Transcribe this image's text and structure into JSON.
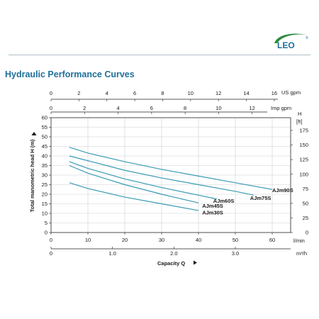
{
  "brand": {
    "name": "LEO",
    "registered": "®",
    "color": "#2e8b3d"
  },
  "header": {
    "title": "Hydraulic Performance Curves"
  },
  "chart_data": {
    "type": "line",
    "title": "Hydraulic Performance Curves",
    "xlabel": "Capacity Q",
    "ylabel": "Total manometric head H (m)",
    "grid": true,
    "line_color": "#3a9bb5",
    "grid_color": "#cfcfcf",
    "xlim": [
      0,
      65
    ],
    "ylim": [
      0,
      60
    ],
    "x_unit": "l/min",
    "x_ticks": [
      "0",
      "10",
      "20",
      "30",
      "40",
      "50",
      "60"
    ],
    "y_ticks": [
      "0",
      "5",
      "10",
      "15",
      "20",
      "25",
      "30",
      "35",
      "40",
      "45",
      "50",
      "55",
      "60"
    ],
    "y_unit": "m",
    "right_axis": {
      "unit": "H",
      "unit2": "[ft]",
      "ticks": [
        {
          "label": "0",
          "value": 0
        },
        {
          "label": "25",
          "value": 7.62
        },
        {
          "label": "50",
          "value": 15.24
        },
        {
          "label": "75",
          "value": 22.86
        },
        {
          "label": "100",
          "value": 30.48
        },
        {
          "label": "125",
          "value": 38.1
        },
        {
          "label": "150",
          "value": 45.72
        },
        {
          "label": "175",
          "value": 53.34
        }
      ]
    },
    "top_axis_us": {
      "unit": "US gpm",
      "ticks": [
        {
          "label": "0",
          "value": 0
        },
        {
          "label": "2",
          "value": 7.57
        },
        {
          "label": "4",
          "value": 15.14
        },
        {
          "label": "6",
          "value": 22.71
        },
        {
          "label": "8",
          "value": 30.28
        },
        {
          "label": "10",
          "value": 37.85
        },
        {
          "label": "12",
          "value": 45.42
        },
        {
          "label": "14",
          "value": 52.99
        },
        {
          "label": "16",
          "value": 60.56
        }
      ]
    },
    "top_axis_imp": {
      "unit": "Imp gpm",
      "ticks": [
        {
          "label": "0",
          "value": 0
        },
        {
          "label": "2",
          "value": 9.09
        },
        {
          "label": "4",
          "value": 18.18
        },
        {
          "label": "6",
          "value": 27.28
        },
        {
          "label": "8",
          "value": 36.37
        },
        {
          "label": "10",
          "value": 45.46
        },
        {
          "label": "12",
          "value": 54.55
        }
      ]
    },
    "bottom_axis_m3h": {
      "unit": "m³/h",
      "ticks": [
        {
          "label": "0",
          "value": 0
        },
        {
          "label": "1.0",
          "value": 16.67
        },
        {
          "label": "2.0",
          "value": 33.33
        },
        {
          "label": "3.0",
          "value": 50
        }
      ]
    },
    "series": [
      {
        "name": "AJm90S",
        "x": [
          5,
          10,
          20,
          30,
          40,
          50,
          60
        ],
        "y": [
          44.5,
          41.5,
          37,
          33,
          29.5,
          26,
          22.5
        ],
        "label_at": [
          60,
          22
        ]
      },
      {
        "name": "AJm75S",
        "x": [
          5,
          10,
          20,
          30,
          40,
          50,
          55
        ],
        "y": [
          40,
          37.5,
          32.5,
          28.5,
          25,
          21.5,
          19.5
        ],
        "label_at": [
          54,
          18
        ]
      },
      {
        "name": "AJm60S",
        "x": [
          5,
          10,
          20,
          30,
          40,
          45
        ],
        "y": [
          37,
          33.5,
          28,
          23.5,
          19.5,
          17.5
        ],
        "label_at": [
          44,
          16.5
        ]
      },
      {
        "name": "AJm45S",
        "x": [
          5,
          10,
          20,
          30,
          40
        ],
        "y": [
          35,
          31,
          25,
          20,
          15.5
        ],
        "label_at": [
          41,
          14
        ]
      },
      {
        "name": "AJm30S",
        "x": [
          5,
          10,
          20,
          30,
          40
        ],
        "y": [
          26,
          23,
          18.5,
          15,
          11.5
        ],
        "label_at": [
          41,
          10.5
        ]
      }
    ]
  }
}
